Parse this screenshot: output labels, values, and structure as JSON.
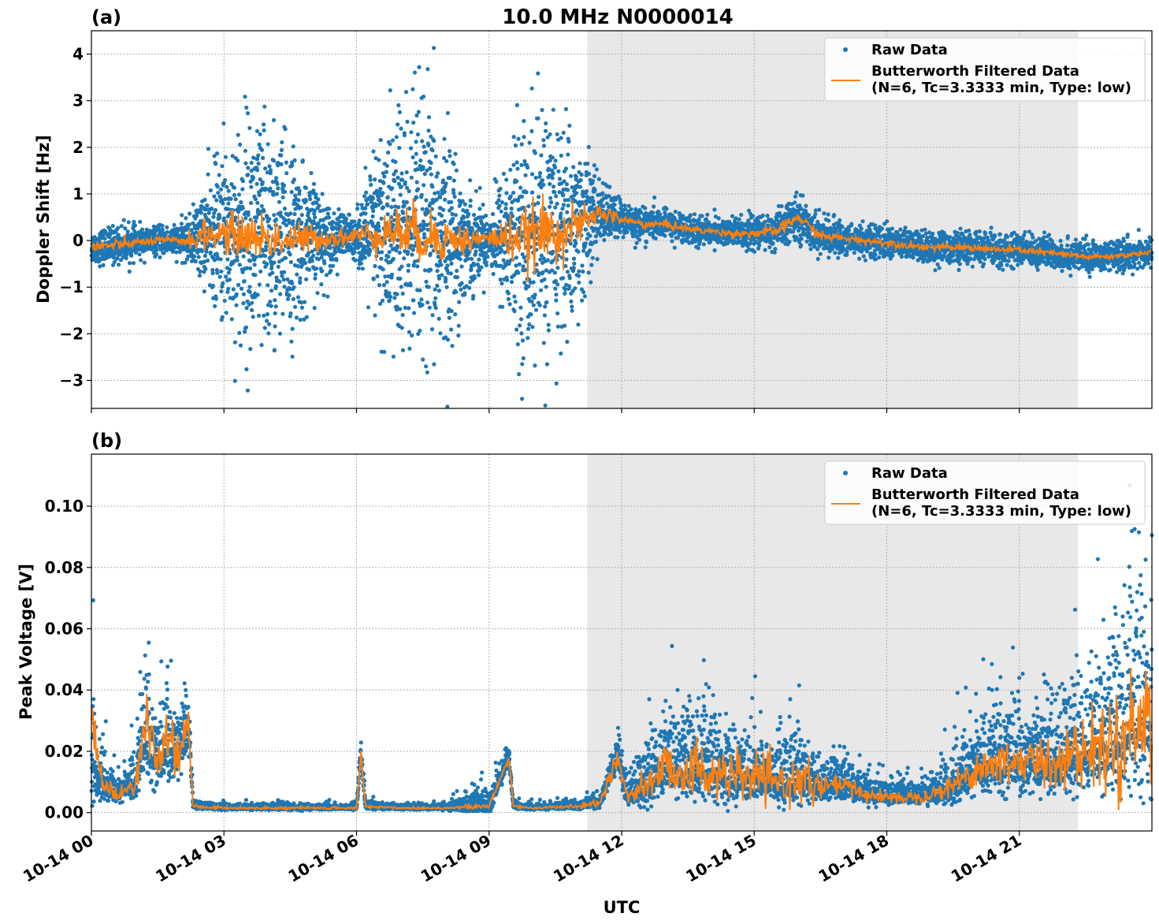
{
  "figure": {
    "title": "10.0 MHz N0000014",
    "xlabel": "UTC",
    "x_tick_labels": [
      "10-14 00",
      "10-14 03",
      "10-14 06",
      "10-14 09",
      "10-14 12",
      "10-14 15",
      "10-14 18",
      "10-14 21"
    ]
  },
  "colors": {
    "raw": "#1f77b4",
    "filtered": "#ff7f0e",
    "shade": "#e8e8e8",
    "grid": "#b0b0b0"
  },
  "chart_data": [
    {
      "type": "scatter",
      "panel_label": "(a)",
      "ylabel": "Doppler Shift [Hz]",
      "xlim_hours": [
        0,
        24
      ],
      "ylim": [
        -3.6,
        4.5
      ],
      "x_ticks_hours": [
        0,
        3,
        6,
        9,
        12,
        15,
        18,
        21
      ],
      "y_ticks": [
        4,
        3,
        2,
        1,
        0,
        -1,
        -2,
        -3
      ],
      "y_tick_labels": [
        "4",
        "3",
        "2",
        "1",
        "0",
        "−1",
        "−2",
        "−3"
      ],
      "shaded_region_hours": [
        11.22,
        22.33
      ],
      "grid": true,
      "legend_placement": "top-right",
      "series": [
        {
          "name": "Raw Data",
          "style": "points",
          "x": [
            0,
            0.5,
            1,
            1.5,
            2,
            2.2,
            2.5,
            3,
            3.5,
            4,
            4.5,
            5,
            5.5,
            6,
            6.5,
            7,
            7.5,
            8,
            8.5,
            9,
            9.5,
            10,
            10.5,
            11,
            11.5,
            12,
            12.5,
            13,
            13.5,
            14,
            14.5,
            15,
            15.5,
            16,
            16.5,
            17,
            17.5,
            18,
            18.5,
            19,
            19.5,
            20,
            20.5,
            21,
            21.5,
            22,
            22.5,
            23,
            23.5,
            24
          ],
          "y_center": [
            -0.15,
            -0.1,
            -0.05,
            0,
            0,
            0,
            0.1,
            0.15,
            0.1,
            0.05,
            0,
            0.05,
            0.05,
            0.1,
            0.15,
            0.2,
            0.1,
            0.05,
            0,
            0.05,
            0.05,
            0.1,
            0.2,
            0.3,
            0.6,
            0.45,
            0.35,
            0.35,
            0.25,
            0.2,
            0.15,
            0.15,
            0.2,
            0.5,
            0.1,
            0.05,
            0,
            -0.05,
            -0.1,
            -0.15,
            -0.15,
            -0.15,
            -0.2,
            -0.2,
            -0.25,
            -0.3,
            -0.35,
            -0.35,
            -0.3,
            -0.25
          ],
          "y_spread": [
            0.3,
            0.35,
            0.3,
            0.25,
            0.3,
            0.4,
            0.8,
            1.7,
            2.3,
            2.3,
            1.8,
            1.1,
            0.5,
            0.4,
            1.8,
            2.6,
            2.6,
            2.1,
            1.0,
            0.5,
            1.8,
            2.4,
            2.4,
            1.7,
            0.6,
            0.35,
            0.3,
            0.25,
            0.3,
            0.25,
            0.3,
            0.3,
            0.35,
            0.4,
            0.35,
            0.3,
            0.3,
            0.3,
            0.3,
            0.3,
            0.3,
            0.3,
            0.3,
            0.3,
            0.3,
            0.3,
            0.28,
            0.28,
            0.28,
            0.28
          ]
        },
        {
          "name": "Butterworth Filtered Data\n(N=6, Tc=3.3333 min, Type: low)",
          "style": "line",
          "x": [
            0,
            0.5,
            1,
            1.5,
            2,
            2.2,
            2.5,
            3,
            3.5,
            4,
            4.5,
            5,
            5.5,
            6,
            6.5,
            7,
            7.5,
            8,
            8.5,
            9,
            9.5,
            10,
            10.5,
            11,
            11.5,
            12,
            12.5,
            13,
            13.5,
            14,
            14.5,
            15,
            15.5,
            16,
            16.5,
            17,
            17.5,
            18,
            18.5,
            19,
            19.5,
            20,
            20.5,
            21,
            21.5,
            22,
            22.5,
            23,
            23.5,
            24
          ],
          "y": [
            -0.15,
            -0.1,
            -0.05,
            0,
            0,
            0,
            0.1,
            0.15,
            0.1,
            0.05,
            0,
            0.05,
            0.05,
            0.1,
            0.15,
            0.2,
            0.1,
            0.05,
            0,
            0.05,
            0.05,
            0.1,
            0.2,
            0.3,
            0.6,
            0.45,
            0.35,
            0.35,
            0.25,
            0.2,
            0.15,
            0.15,
            0.2,
            0.5,
            0.1,
            0.05,
            0,
            -0.05,
            -0.1,
            -0.15,
            -0.15,
            -0.15,
            -0.2,
            -0.2,
            -0.25,
            -0.3,
            -0.35,
            -0.35,
            -0.3,
            -0.25
          ],
          "y_noise": [
            0.08,
            0.06,
            0.05,
            0.04,
            0.05,
            0.1,
            0.15,
            0.2,
            0.25,
            0.25,
            0.2,
            0.15,
            0.1,
            0.1,
            0.2,
            0.3,
            0.3,
            0.25,
            0.15,
            0.1,
            0.25,
            0.35,
            0.35,
            0.2,
            0.1,
            0.06,
            0.05,
            0.05,
            0.04,
            0.04,
            0.04,
            0.05,
            0.06,
            0.06,
            0.05,
            0.04,
            0.04,
            0.04,
            0.04,
            0.04,
            0.04,
            0.04,
            0.04,
            0.04,
            0.04,
            0.04,
            0.03,
            0.03,
            0.03,
            0.03
          ]
        }
      ]
    },
    {
      "type": "scatter",
      "panel_label": "(b)",
      "ylabel": "Peak Voltage [V]",
      "xlim_hours": [
        0,
        24
      ],
      "ylim": [
        -0.006,
        0.117
      ],
      "x_ticks_hours": [
        0,
        3,
        6,
        9,
        12,
        15,
        18,
        21
      ],
      "y_ticks": [
        0.0,
        0.02,
        0.04,
        0.06,
        0.08,
        0.1
      ],
      "y_tick_labels": [
        "0.00",
        "0.02",
        "0.04",
        "0.06",
        "0.08",
        "0.10"
      ],
      "shaded_region_hours": [
        11.22,
        22.33
      ],
      "grid": true,
      "legend_placement": "top-right",
      "series": [
        {
          "name": "Raw Data",
          "style": "points",
          "x": [
            0,
            0.25,
            0.5,
            0.75,
            1,
            1.25,
            1.5,
            1.75,
            2,
            2.2,
            2.3,
            3,
            4,
            5,
            6,
            6.1,
            6.2,
            7,
            8,
            9,
            9.45,
            9.55,
            10,
            11,
            11.5,
            11.9,
            12.1,
            12.5,
            13,
            13.5,
            14,
            14.5,
            15,
            15.5,
            16,
            16.5,
            17,
            17.5,
            18,
            18.5,
            19,
            19.5,
            20,
            20.5,
            21,
            21.5,
            22,
            22.5,
            23,
            23.5,
            24
          ],
          "y_center": [
            0.018,
            0.01,
            0.006,
            0.007,
            0.01,
            0.025,
            0.015,
            0.022,
            0.02,
            0.028,
            0.002,
            0.0015,
            0.0015,
            0.0015,
            0.0015,
            0.019,
            0.002,
            0.0015,
            0.0015,
            0.002,
            0.018,
            0.002,
            0.0015,
            0.002,
            0.003,
            0.018,
            0.006,
            0.008,
            0.015,
            0.014,
            0.013,
            0.011,
            0.012,
            0.009,
            0.011,
            0.008,
            0.009,
            0.006,
            0.005,
            0.005,
            0.006,
            0.009,
            0.014,
            0.016,
            0.017,
            0.016,
            0.018,
            0.02,
            0.022,
            0.026,
            0.03
          ],
          "y_spread": [
            0.02,
            0.007,
            0.004,
            0.004,
            0.007,
            0.015,
            0.01,
            0.013,
            0.012,
            0.01,
            0.001,
            0.0008,
            0.0008,
            0.0008,
            0.0008,
            0.003,
            0.001,
            0.0008,
            0.0008,
            0.004,
            0.003,
            0.001,
            0.0008,
            0.001,
            0.002,
            0.005,
            0.004,
            0.008,
            0.012,
            0.012,
            0.011,
            0.01,
            0.01,
            0.008,
            0.009,
            0.006,
            0.006,
            0.004,
            0.003,
            0.003,
            0.004,
            0.008,
            0.01,
            0.012,
            0.013,
            0.013,
            0.014,
            0.017,
            0.02,
            0.025,
            0.03
          ]
        },
        {
          "name": "Butterworth Filtered Data\n(N=6, Tc=3.3333 min, Type: low)",
          "style": "line",
          "x": [
            0,
            0.25,
            0.5,
            0.75,
            1,
            1.25,
            1.5,
            1.75,
            2,
            2.2,
            2.3,
            3,
            4,
            5,
            6,
            6.1,
            6.2,
            7,
            8,
            9,
            9.45,
            9.55,
            10,
            11,
            11.5,
            11.9,
            12.1,
            12.5,
            13,
            13.5,
            14,
            14.5,
            15,
            15.5,
            16,
            16.5,
            17,
            17.5,
            18,
            18.5,
            19,
            19.5,
            20,
            20.5,
            21,
            21.5,
            22,
            22.5,
            23,
            23.5,
            24
          ],
          "y": [
            0.03,
            0.01,
            0.006,
            0.007,
            0.01,
            0.03,
            0.015,
            0.025,
            0.02,
            0.028,
            0.002,
            0.0015,
            0.0015,
            0.0015,
            0.0015,
            0.019,
            0.002,
            0.0015,
            0.0015,
            0.002,
            0.018,
            0.002,
            0.0015,
            0.002,
            0.003,
            0.018,
            0.006,
            0.008,
            0.015,
            0.014,
            0.013,
            0.011,
            0.012,
            0.009,
            0.011,
            0.008,
            0.009,
            0.006,
            0.005,
            0.005,
            0.006,
            0.009,
            0.014,
            0.016,
            0.017,
            0.016,
            0.018,
            0.02,
            0.022,
            0.026,
            0.034
          ],
          "y_noise": [
            0.006,
            0.002,
            0.001,
            0.0015,
            0.002,
            0.005,
            0.003,
            0.004,
            0.004,
            0.003,
            0.0003,
            0.0002,
            0.0002,
            0.0002,
            0.0002,
            0.001,
            0.0003,
            0.0002,
            0.0002,
            0.0005,
            0.001,
            0.0003,
            0.0002,
            0.0003,
            0.0006,
            0.002,
            0.001,
            0.003,
            0.005,
            0.005,
            0.004,
            0.004,
            0.004,
            0.003,
            0.004,
            0.002,
            0.002,
            0.0012,
            0.001,
            0.001,
            0.0012,
            0.002,
            0.003,
            0.004,
            0.004,
            0.004,
            0.005,
            0.006,
            0.007,
            0.009,
            0.01
          ]
        }
      ]
    }
  ]
}
